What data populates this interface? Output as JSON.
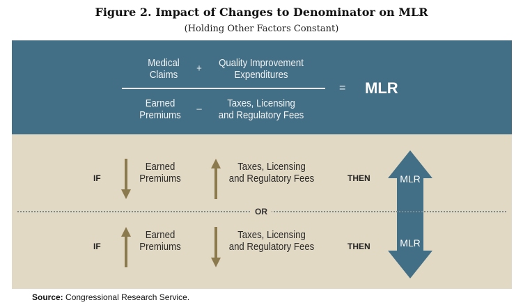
{
  "title": "Figure 2. Impact of Changes to Denominator on MLR",
  "subtitle": "(Holding Other Factors Constant)",
  "formula": {
    "num_a": [
      "Medical",
      "Claims"
    ],
    "plus": "+",
    "num_b": [
      "Quality Improvement",
      "Expenditures"
    ],
    "den_a": [
      "Earned",
      "Premiums"
    ],
    "minus": "–",
    "den_b": [
      "Taxes, Licensing",
      "and Regulatory Fees"
    ],
    "equals": "=",
    "result": "MLR"
  },
  "rows": [
    {
      "if": "IF",
      "a_dir": "down",
      "a": [
        "Earned",
        "Premiums"
      ],
      "b_dir": "up",
      "b": [
        "Taxes, Licensing",
        "and Regulatory Fees"
      ],
      "then": "THEN",
      "mlr_dir": "up",
      "mlr": "MLR"
    },
    {
      "if": "IF",
      "a_dir": "up",
      "a": [
        "Earned",
        "Premiums"
      ],
      "b_dir": "down",
      "b": [
        "Taxes, Licensing",
        "and Regulatory Fees"
      ],
      "then": "THEN",
      "mlr_dir": "down",
      "mlr": "MLR"
    }
  ],
  "or": "OR",
  "source_label": "Source:",
  "source": "Congressional Research Service.",
  "colors": {
    "blue": "#426f86",
    "tan": "#e2d9c4",
    "arrow": "#8c7a4f"
  }
}
